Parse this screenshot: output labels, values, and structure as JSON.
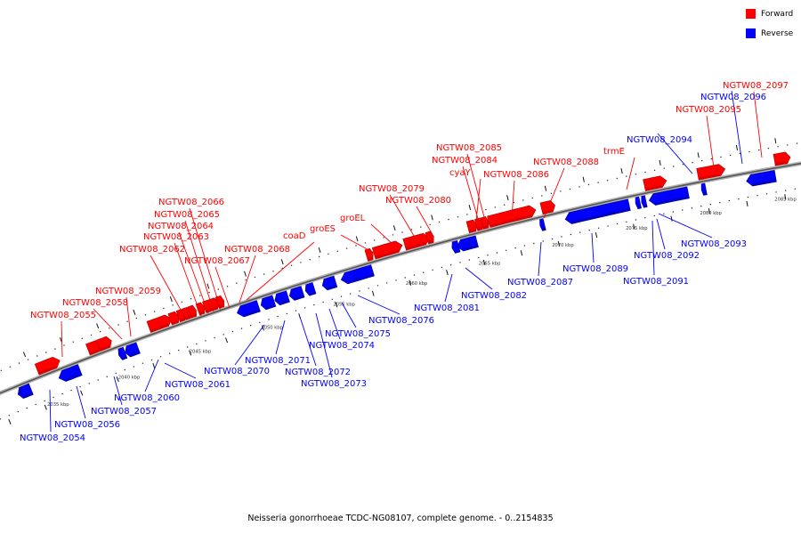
{
  "legend": [
    {
      "label": "Forward",
      "color": "#ff0000"
    },
    {
      "label": "Reverse",
      "color": "#0000ff"
    }
  ],
  "caption": "Neisseria gonorrhoeae TCDC-NG08107, complete genome. - 0..2154835",
  "colors": {
    "forward": "#ff0000",
    "reverse": "#0000ff",
    "backbone": "#888888"
  },
  "scale": {
    "unit": "kbp",
    "ticks": [
      {
        "kbp": 2035,
        "label": "2035 kbp"
      },
      {
        "kbp": 2040,
        "label": "2040 kbp"
      },
      {
        "kbp": 2045,
        "label": "2045 kbp"
      },
      {
        "kbp": 2050,
        "label": "2050 kbp"
      },
      {
        "kbp": 2055,
        "label": "2055 kbp"
      },
      {
        "kbp": 2060,
        "label": "2060 kbp"
      },
      {
        "kbp": 2065,
        "label": "2065 kbp"
      },
      {
        "kbp": 2070,
        "label": "2070 kbp"
      },
      {
        "kbp": 2075,
        "label": "2075 kbp"
      },
      {
        "kbp": 2080,
        "label": "2080 kbp"
      },
      {
        "kbp": 2085,
        "label": "2085 kbp"
      }
    ]
  },
  "genes": [
    {
      "name": "NGTW08_2054",
      "strand": "reverse"
    },
    {
      "name": "NGTW08_2055",
      "strand": "forward"
    },
    {
      "name": "NGTW08_2056",
      "strand": "reverse"
    },
    {
      "name": "NGTW08_2057",
      "strand": "reverse"
    },
    {
      "name": "NGTW08_2058",
      "strand": "forward"
    },
    {
      "name": "NGTW08_2059",
      "strand": "forward"
    },
    {
      "name": "NGTW08_2060",
      "strand": "reverse"
    },
    {
      "name": "NGTW08_2061",
      "strand": "reverse"
    },
    {
      "name": "NGTW08_2062",
      "strand": "forward"
    },
    {
      "name": "NGTW08_2063",
      "strand": "forward"
    },
    {
      "name": "NGTW08_2064",
      "strand": "forward"
    },
    {
      "name": "NGTW08_2065",
      "strand": "forward"
    },
    {
      "name": "NGTW08_2066",
      "strand": "forward"
    },
    {
      "name": "NGTW08_2067",
      "strand": "forward"
    },
    {
      "name": "NGTW08_2068",
      "strand": "forward"
    },
    {
      "name": "coaD",
      "strand": "forward"
    },
    {
      "name": "NGTW08_2070",
      "strand": "reverse"
    },
    {
      "name": "NGTW08_2071",
      "strand": "reverse"
    },
    {
      "name": "NGTW08_2072",
      "strand": "reverse"
    },
    {
      "name": "NGTW08_2073",
      "strand": "reverse"
    },
    {
      "name": "NGTW08_2074",
      "strand": "reverse"
    },
    {
      "name": "NGTW08_2075",
      "strand": "reverse"
    },
    {
      "name": "NGTW08_2076",
      "strand": "reverse"
    },
    {
      "name": "groES",
      "strand": "forward"
    },
    {
      "name": "groEL",
      "strand": "forward"
    },
    {
      "name": "NGTW08_2079",
      "strand": "forward"
    },
    {
      "name": "NGTW08_2080",
      "strand": "forward"
    },
    {
      "name": "NGTW08_2081",
      "strand": "reverse"
    },
    {
      "name": "NGTW08_2082",
      "strand": "reverse"
    },
    {
      "name": "cyaY",
      "strand": "forward"
    },
    {
      "name": "NGTW08_2084",
      "strand": "forward"
    },
    {
      "name": "NGTW08_2085",
      "strand": "forward"
    },
    {
      "name": "NGTW08_2086",
      "strand": "forward"
    },
    {
      "name": "NGTW08_2087",
      "strand": "reverse"
    },
    {
      "name": "NGTW08_2088",
      "strand": "forward"
    },
    {
      "name": "NGTW08_2089",
      "strand": "reverse"
    },
    {
      "name": "trmE",
      "strand": "forward"
    },
    {
      "name": "NGTW08_2091",
      "strand": "reverse"
    },
    {
      "name": "NGTW08_2092",
      "strand": "reverse"
    },
    {
      "name": "NGTW08_2093",
      "strand": "reverse"
    },
    {
      "name": "NGTW08_2094",
      "strand": "reverse"
    },
    {
      "name": "NGTW08_2095",
      "strand": "forward"
    },
    {
      "name": "NGTW08_2096",
      "strand": "reverse"
    },
    {
      "name": "NGTW08_2097",
      "strand": "forward"
    }
  ]
}
